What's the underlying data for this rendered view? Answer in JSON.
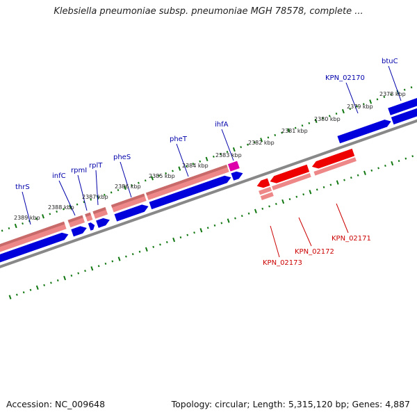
{
  "title": "Klebsiella pneumoniae subsp. pneumoniae MGH 78578, complete ...",
  "footer": {
    "accession": "Accession: NC_009648",
    "summary": "Topology: circular; Length: 5,315,120 bp; Genes: 4,887"
  },
  "colors": {
    "forward_blue": "#0000dd",
    "forward_pink": "#ee8888",
    "reverse_red": "#ee0000",
    "ihfA_magenta": "#dd00aa",
    "backbone": "#888888",
    "tick_green": "#117711",
    "label_blue": "#0000aa",
    "label_red": "#cc0000"
  },
  "scale_labels": [
    "2389 kbp",
    "2388 kbp",
    "2387 kbp",
    "2386 kbp",
    "2385 kbp",
    "2384 kbp",
    "2383 kbp",
    "2382 kbp",
    "2381 kbp",
    "2380 kbp",
    "2379 kbp",
    "2378 kbp"
  ],
  "genes_forward": [
    "thrS",
    "infC",
    "rpmI",
    "rplT",
    "pheS",
    "pheT",
    "ihfA",
    "KPN_02170",
    "btuC"
  ],
  "genes_reverse": [
    "KPN_02173",
    "KPN_02172",
    "KPN_02171"
  ]
}
